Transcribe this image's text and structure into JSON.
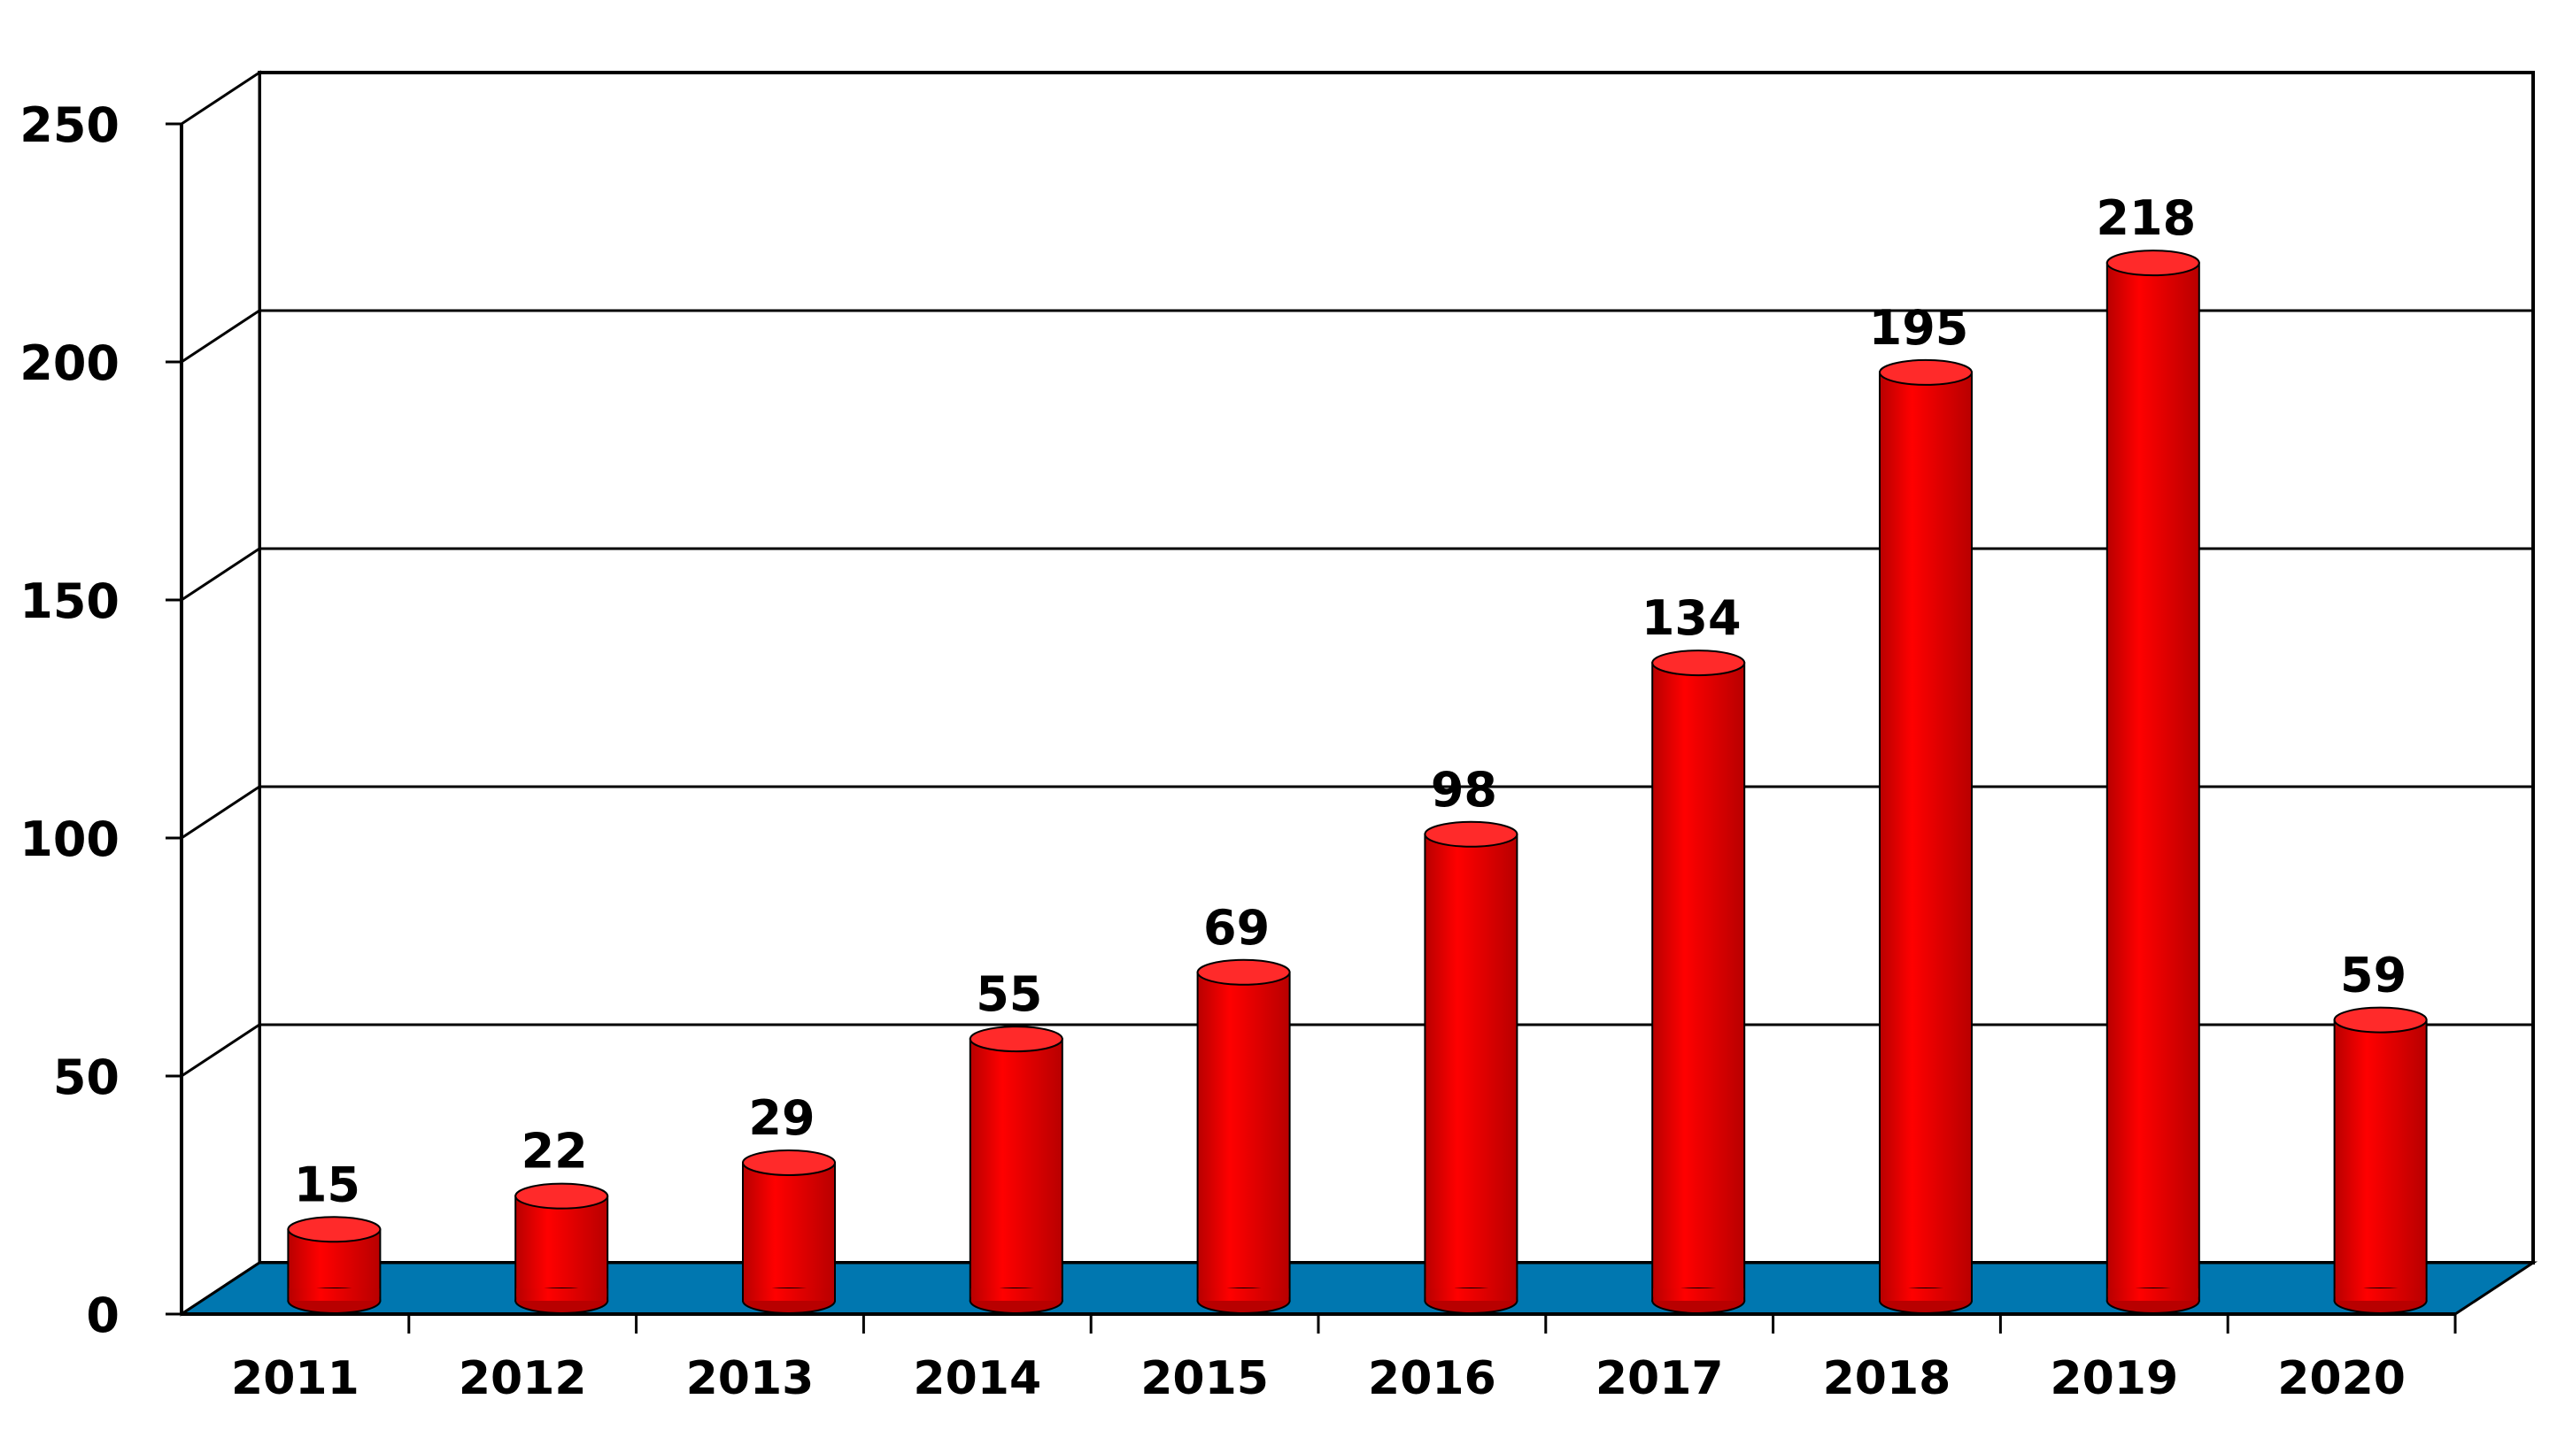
{
  "chart_data": {
    "type": "bar",
    "title": "",
    "xlabel": "",
    "ylabel": "",
    "categories": [
      "2011",
      "2012",
      "2013",
      "2014",
      "2015",
      "2016",
      "2017",
      "2018",
      "2019",
      "2020"
    ],
    "values": [
      15,
      22,
      29,
      55,
      69,
      98,
      134,
      195,
      218,
      59
    ],
    "data_labels": [
      "15",
      "22",
      "29",
      "55",
      "69",
      "98",
      "134",
      "195",
      "218",
      "59"
    ],
    "ylim": [
      0,
      250
    ],
    "yticks": [
      "0",
      "50",
      "100",
      "150",
      "200",
      "250"
    ],
    "grid": true,
    "legend": "none",
    "style": "3d-cylinder"
  },
  "colors": {
    "bar": "#ff0000",
    "bar_shade": "#b80000",
    "bar_top": "#ff2a2a",
    "floor": "#0077b0",
    "grid": "#000000",
    "text": "#000000"
  }
}
